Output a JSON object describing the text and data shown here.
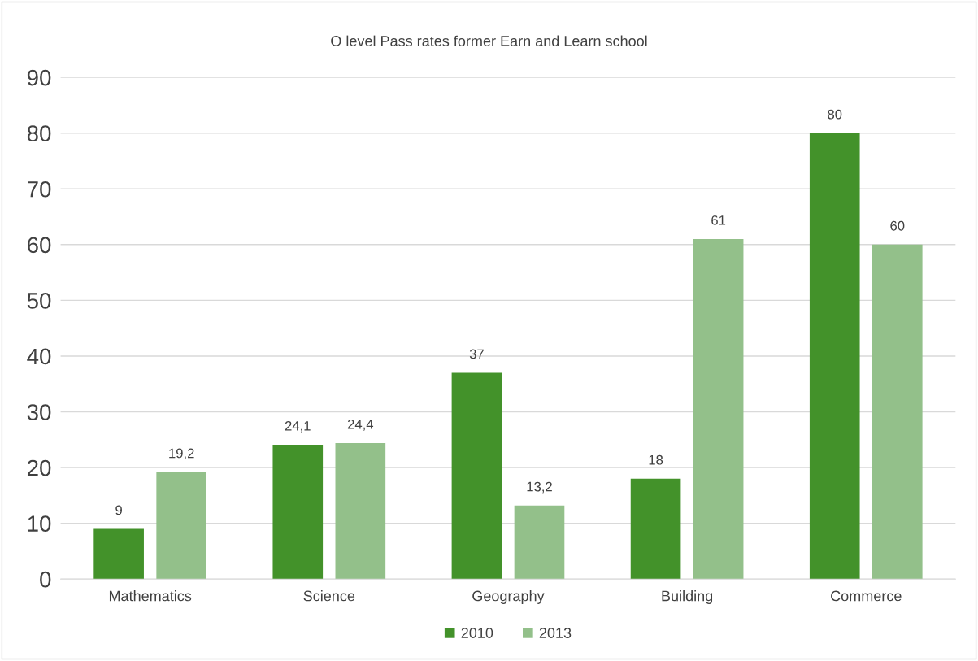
{
  "chart_data": {
    "type": "bar",
    "title": "O level Pass rates former Earn and Learn school",
    "categories": [
      "Mathematics",
      "Science",
      "Geography",
      "Building",
      "Commerce"
    ],
    "series": [
      {
        "name": "2010",
        "color": "#43922a",
        "values": [
          9,
          24.1,
          37,
          18,
          80
        ],
        "value_labels": [
          "9",
          "24,1",
          "37",
          "18",
          "80"
        ]
      },
      {
        "name": "2013",
        "color": "#93c08a",
        "values": [
          19.2,
          24.4,
          13.2,
          61,
          60
        ],
        "value_labels": [
          "19,2",
          "24,4",
          "13,2",
          "61",
          "60"
        ]
      }
    ],
    "ylim": [
      0,
      90
    ],
    "yticks": [
      0,
      10,
      20,
      30,
      40,
      50,
      60,
      70,
      80,
      90
    ],
    "grid": "y",
    "legend": "bottom"
  }
}
